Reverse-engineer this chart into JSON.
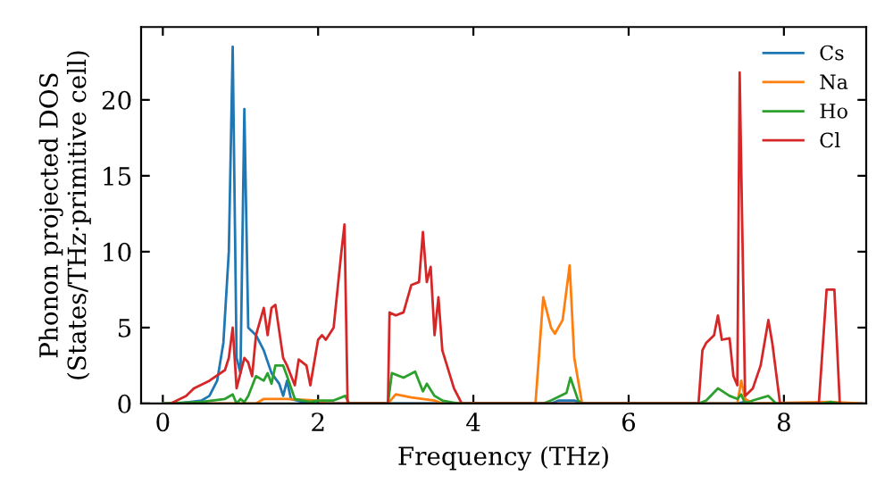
{
  "chart_data": {
    "type": "line",
    "xlabel": "Frequency (THz)",
    "ylabel": "Phonon projected DOS\n(States/THz·primitive cell)",
    "xlim": [
      -0.28,
      9.06
    ],
    "ylim": [
      0,
      24.8
    ],
    "xticks": [
      0,
      2,
      4,
      6,
      8
    ],
    "yticks": [
      0,
      5,
      10,
      15,
      20
    ],
    "grid": false,
    "legend": "top right",
    "marker": "none",
    "line_style": "solid",
    "series": [
      {
        "name": "Cs",
        "color": "#1f77b4",
        "x": [
          0,
          0.2,
          0.5,
          0.6,
          0.7,
          0.78,
          0.85,
          0.9,
          0.95,
          1.0,
          1.05,
          1.1,
          1.2,
          1.3,
          1.4,
          1.5,
          1.55,
          1.6,
          1.65,
          1.8,
          2.0,
          5.0,
          5.1,
          5.3,
          5.4,
          7.4,
          7.5,
          7.6,
          9.0
        ],
        "values": [
          0,
          0,
          0.2,
          0.5,
          1.5,
          4,
          10,
          23.5,
          3,
          2,
          19.4,
          5,
          4.5,
          3.5,
          2,
          1.3,
          0.5,
          1.5,
          0.3,
          0.1,
          0,
          0,
          0.2,
          0.2,
          0,
          0,
          0.1,
          0,
          0
        ]
      },
      {
        "name": "Na",
        "color": "#ff7f0e",
        "x": [
          0,
          1.2,
          1.3,
          1.6,
          2.0,
          2.1,
          2.9,
          3.0,
          3.2,
          3.5,
          3.6,
          4.8,
          4.9,
          5.0,
          5.05,
          5.15,
          5.24,
          5.3,
          5.4,
          7.4,
          7.45,
          7.5,
          7.6,
          8.6,
          9.0
        ],
        "values": [
          0,
          0,
          0.3,
          0.3,
          0.2,
          0,
          0,
          0.6,
          0.4,
          0.2,
          0,
          0,
          7,
          5,
          4.6,
          5.5,
          9.1,
          3,
          0,
          0,
          1.5,
          0.3,
          0,
          0.1,
          0
        ]
      },
      {
        "name": "Ho",
        "color": "#2ca02c",
        "x": [
          0,
          0.5,
          0.8,
          0.9,
          0.95,
          1.0,
          1.05,
          1.1,
          1.2,
          1.3,
          1.35,
          1.4,
          1.45,
          1.55,
          1.6,
          1.7,
          1.8,
          1.9,
          2.0,
          2.2,
          2.35,
          2.4,
          2.9,
          2.95,
          3.1,
          3.25,
          3.35,
          3.4,
          3.5,
          3.6,
          3.8,
          4.9,
          5.0,
          5.2,
          5.25,
          5.35,
          5.4,
          6.9,
          7.0,
          7.15,
          7.3,
          7.4,
          7.45,
          7.5,
          7.6,
          7.8,
          7.9,
          8.5,
          8.6,
          8.7
        ],
        "values": [
          0,
          0.1,
          0.3,
          0.6,
          0,
          0.3,
          0.1,
          0.5,
          1.8,
          1.5,
          2,
          1.3,
          2.5,
          2.5,
          1.8,
          0.3,
          0.2,
          0.1,
          0.2,
          0.2,
          0.5,
          0,
          0,
          2,
          1.7,
          2.1,
          0.8,
          1.3,
          0.5,
          0.2,
          0,
          0,
          0.2,
          0.7,
          1.7,
          0.2,
          0,
          0,
          0.2,
          1.0,
          0.5,
          0.3,
          0.6,
          0,
          0.2,
          0.5,
          0,
          0,
          0.1,
          0
        ]
      },
      {
        "name": "Cl",
        "color": "#d62728",
        "x": [
          0.1,
          0.3,
          0.4,
          0.6,
          0.8,
          0.85,
          0.9,
          0.95,
          1.0,
          1.05,
          1.1,
          1.15,
          1.2,
          1.3,
          1.35,
          1.4,
          1.45,
          1.55,
          1.6,
          1.7,
          1.75,
          1.85,
          1.9,
          2.0,
          2.05,
          2.1,
          2.2,
          2.3,
          2.34,
          2.38,
          2.9,
          2.92,
          3.0,
          3.1,
          3.2,
          3.3,
          3.35,
          3.4,
          3.45,
          3.5,
          3.55,
          3.6,
          3.75,
          3.85,
          6.9,
          6.95,
          7.0,
          7.1,
          7.15,
          7.2,
          7.3,
          7.35,
          7.4,
          7.43,
          7.5,
          7.6,
          7.7,
          7.8,
          7.85,
          7.95,
          8.45,
          8.55,
          8.65,
          8.72
        ],
        "values": [
          0,
          0.5,
          1.0,
          1.5,
          2.2,
          3,
          5,
          1,
          2,
          3,
          2.7,
          1.8,
          4.5,
          6.3,
          4.5,
          6.3,
          6.5,
          3,
          2.5,
          1.2,
          2.9,
          2.5,
          1.2,
          4.2,
          4.5,
          4.2,
          5,
          10,
          11.8,
          0,
          0,
          6,
          5.8,
          6,
          7.8,
          8,
          11.3,
          8,
          9,
          4.5,
          7,
          3.5,
          1,
          0,
          0,
          3.5,
          4,
          4.5,
          5.8,
          4.2,
          4.3,
          1.8,
          1.2,
          21.8,
          0.5,
          1,
          2.5,
          5.5,
          4,
          0,
          0,
          7.5,
          7.5,
          0
        ]
      }
    ]
  }
}
